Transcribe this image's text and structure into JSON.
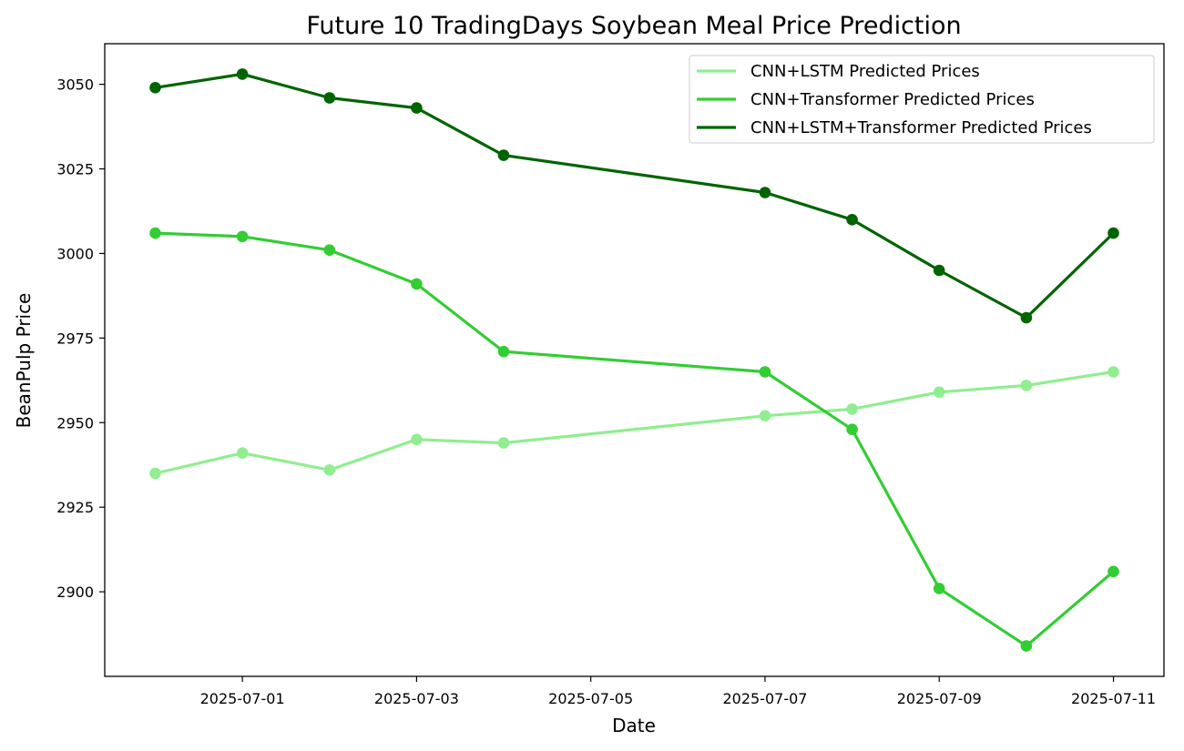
{
  "chart_data": {
    "type": "line",
    "title": "Future 10 TradingDays Soybean Meal Price Prediction",
    "xlabel": "Date",
    "ylabel": "BeanPulp Price",
    "x": [
      "2025-06-30",
      "2025-07-01",
      "2025-07-02",
      "2025-07-03",
      "2025-07-04",
      "2025-07-07",
      "2025-07-08",
      "2025-07-09",
      "2025-07-10",
      "2025-07-11"
    ],
    "xlim": [
      "2025-06-29",
      "2025-07-11"
    ],
    "ylim": [
      2875,
      3062
    ],
    "x_ticks": [
      "2025-07-01",
      "2025-07-03",
      "2025-07-05",
      "2025-07-07",
      "2025-07-09",
      "2025-07-11"
    ],
    "y_ticks": [
      2900,
      2925,
      2950,
      2975,
      3000,
      3025,
      3050
    ],
    "grid": false,
    "legend_position": "top-right",
    "series": [
      {
        "name": "CNN+LSTM Predicted Prices",
        "color": "#90ee90",
        "values": [
          2935,
          2941,
          2936,
          2945,
          2944,
          2952,
          2954,
          2959,
          2961,
          2965
        ]
      },
      {
        "name": "CNN+Transformer Predicted Prices",
        "color": "#32cd32",
        "values": [
          3006,
          3005,
          3001,
          2991,
          2971,
          2965,
          2948,
          2901,
          2884,
          2906
        ]
      },
      {
        "name": "CNN+LSTM+Transformer Predicted Prices",
        "color": "#006400",
        "values": [
          3049,
          3053,
          3046,
          3043,
          3029,
          3018,
          3010,
          2995,
          2981,
          3006
        ]
      }
    ]
  }
}
